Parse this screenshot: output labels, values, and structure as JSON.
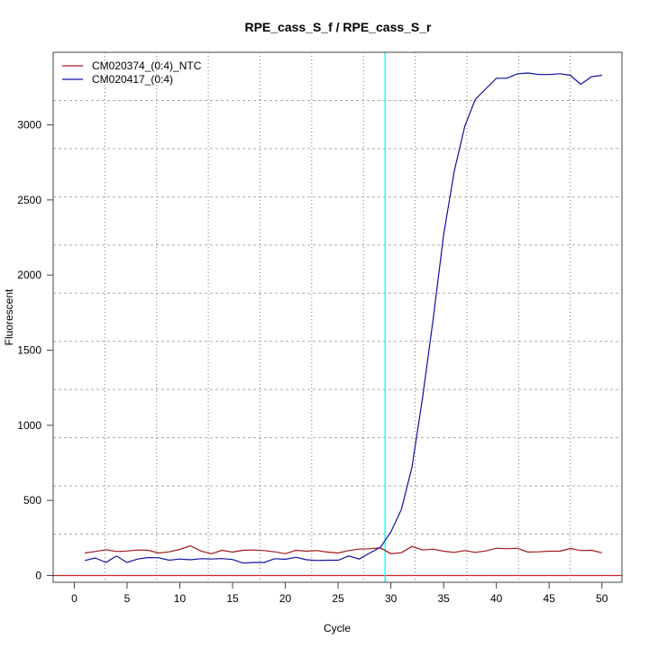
{
  "chart_data": {
    "type": "line",
    "title": "RPE_cass_S_f / RPE_cass_S_r",
    "xlabel": "Cycle",
    "ylabel": "Fluorescent",
    "xlim": [
      -2,
      51.9
    ],
    "ylim": [
      -45,
      3483
    ],
    "xticks": [
      0,
      5,
      10,
      15,
      20,
      25,
      30,
      35,
      40,
      45,
      50
    ],
    "yticks": [
      0,
      500,
      1000,
      1500,
      2000,
      2500,
      3000
    ],
    "grid": true,
    "legend_position": "top-left",
    "threshold_value": 0,
    "threshold_color": "#cc2222",
    "cycle_marker": 29.45,
    "cycle_marker_color": "#00ffff",
    "x": [
      1,
      2,
      3,
      4,
      5,
      6,
      7,
      8,
      9,
      10,
      11,
      12,
      13,
      14,
      15,
      16,
      17,
      18,
      19,
      20,
      21,
      22,
      23,
      24,
      25,
      26,
      27,
      28,
      29,
      30,
      31,
      32,
      33,
      34,
      35,
      36,
      37,
      38,
      39,
      40,
      41,
      42,
      43,
      44,
      45,
      46,
      47,
      48,
      49,
      50
    ],
    "series": [
      {
        "name": "CM020374_(0:4)_NTC",
        "color": "#a01818",
        "values": [
          150,
          160,
          172,
          160,
          163,
          170,
          168,
          150,
          158,
          174,
          198,
          163,
          145,
          168,
          156,
          168,
          170,
          166,
          158,
          145,
          168,
          162,
          166,
          156,
          150,
          166,
          176,
          178,
          184,
          146,
          152,
          194,
          170,
          176,
          162,
          154,
          166,
          154,
          164,
          182,
          178,
          182,
          156,
          158,
          162,
          162,
          180,
          166,
          168,
          152
        ]
      },
      {
        "name": "CM020417_(0:4)",
        "color": "#1010a0",
        "values": [
          100,
          117,
          87,
          130,
          87,
          110,
          120,
          118,
          102,
          110,
          105,
          112,
          110,
          113,
          107,
          83,
          87,
          87,
          112,
          108,
          122,
          105,
          100,
          102,
          102,
          130,
          110,
          150,
          187,
          290,
          440,
          720,
          1180,
          1700,
          2270,
          2690,
          2990,
          3170,
          3240,
          3310,
          3310,
          3340,
          3345,
          3335,
          3335,
          3340,
          3330,
          3270,
          3320,
          3330
        ]
      }
    ]
  }
}
